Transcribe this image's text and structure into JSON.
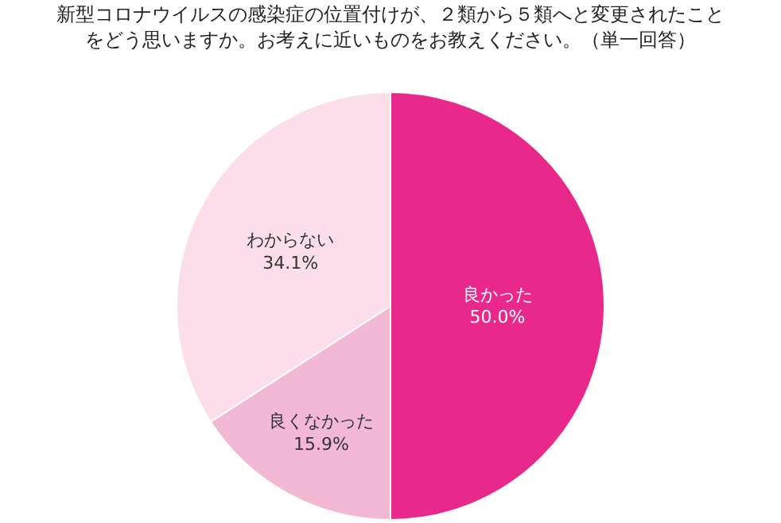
{
  "chart_data": {
    "type": "pie",
    "title": "新型コロナウイルスの感染症の位置付けが、２類から５類へと変更されたことをどう思いますか。お考えに近いものをお教えください。（単一回答）",
    "categories": [
      "良かった",
      "良くなかった",
      "わからない"
    ],
    "values": [
      50.0,
      15.9,
      34.1
    ],
    "value_labels": [
      "50.0%",
      "15.9%",
      "34.1%"
    ],
    "colors": [
      "#e8288a",
      "#f3b9d4",
      "#fbdeea"
    ],
    "legend": false
  }
}
